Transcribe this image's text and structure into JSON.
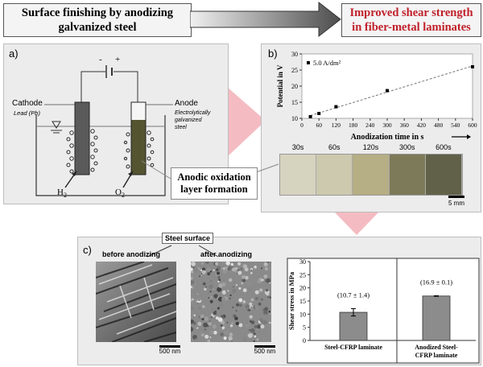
{
  "header": {
    "left_line1": "Surface finishing by anodizing",
    "left_line2": "galvanized steel",
    "right_line1": "Improved shear strength",
    "right_line2": "in fiber-metal laminates",
    "right_color": "#c0202a"
  },
  "panel_a": {
    "label": "a)",
    "minus": "-",
    "plus": "+",
    "cathode": "Cathode",
    "cathode_material": "Lead (Pb)",
    "anode": "Anode",
    "anode_material_1": "Electrolytically",
    "anode_material_2": "galvanized",
    "anode_material_3": "steel",
    "h2": "H",
    "h2_sub": "2",
    "o2": "O",
    "o2_sub": "2"
  },
  "callout": {
    "line1": "Anodic oxidation",
    "line2": "layer formation"
  },
  "panel_b": {
    "label": "b)",
    "legend": "5.0 A/dm²",
    "sample_labels": [
      "30s",
      "60s",
      "120s",
      "300s",
      "600s"
    ],
    "sample_colors": [
      "#d6d3bf",
      "#ccc9ae",
      "#b6ae84",
      "#7c7a58",
      "#616149"
    ],
    "scale_bar": "5 mm"
  },
  "chart_data": [
    {
      "type": "scatter",
      "xlabel": "Anodization time in s",
      "ylabel": "Potential in V",
      "xlim": [
        0,
        600
      ],
      "ylim": [
        10,
        30
      ],
      "xticks": [
        0,
        60,
        120,
        180,
        240,
        300,
        360,
        420,
        480,
        540,
        600
      ],
      "yticks": [
        10,
        15,
        20,
        25,
        30
      ],
      "series": [
        {
          "name": "5.0 A/dm²",
          "x": [
            30,
            60,
            120,
            300,
            600
          ],
          "y": [
            10.5,
            11.5,
            13.6,
            18.6,
            26.0
          ]
        }
      ],
      "trendline": true
    },
    {
      "type": "bar",
      "categories": [
        "Steel-CFRP laminate",
        "Anodized Steel-CFRP laminate"
      ],
      "category_lines": [
        [
          "Steel-CFRP laminate"
        ],
        [
          "Anodized Steel-",
          "CFRP laminate"
        ]
      ],
      "values": [
        10.7,
        16.9
      ],
      "errors": [
        1.4,
        0.1
      ],
      "value_labels": [
        "(10.7 ± 1.4)",
        "(16.9  ± 0.1)"
      ],
      "ylabel": "Shear stress in MPa",
      "ylim": [
        0,
        30
      ],
      "yticks": [
        0,
        5,
        10,
        15,
        20,
        25,
        30
      ],
      "bar_color": "#8c8c8c"
    }
  ],
  "panel_c": {
    "label": "c)",
    "steel_surface": "Steel surface",
    "before": "before anodizing",
    "after": "after anodizing",
    "scale_before": "500 nm",
    "scale_after": "500 nm"
  }
}
